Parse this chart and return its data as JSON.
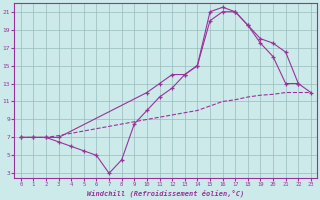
{
  "xlabel": "Windchill (Refroidissement éolien,°C)",
  "xlim": [
    -0.5,
    23.5
  ],
  "ylim": [
    2.5,
    22
  ],
  "yticks": [
    3,
    5,
    7,
    9,
    11,
    13,
    15,
    17,
    19,
    21
  ],
  "xticks": [
    0,
    1,
    2,
    3,
    4,
    5,
    6,
    7,
    8,
    9,
    10,
    11,
    12,
    13,
    14,
    15,
    16,
    17,
    18,
    19,
    20,
    21,
    22,
    23
  ],
  "bg_color": "#cceaea",
  "line_color": "#993399",
  "grid_color": "#99bbbb",
  "line1_x": [
    0,
    1,
    2,
    3,
    4,
    5,
    6,
    7,
    8,
    9,
    10,
    11,
    12,
    13,
    14,
    15,
    16,
    17,
    18,
    19,
    20,
    21,
    22
  ],
  "line1_y": [
    7,
    7,
    7,
    6.5,
    6,
    5.5,
    5,
    3,
    4.5,
    8.5,
    10,
    11.5,
    12.5,
    14,
    15,
    21,
    21.5,
    21,
    19.5,
    17.5,
    16,
    13,
    13
  ],
  "line2_x": [
    0,
    1,
    2,
    3,
    10,
    11,
    12,
    13,
    14,
    15,
    16,
    17,
    18,
    19,
    20,
    21,
    22,
    23
  ],
  "line2_y": [
    7,
    7,
    7,
    7,
    12,
    13,
    14,
    14,
    15,
    20,
    21,
    21,
    19.5,
    18,
    17.5,
    16.5,
    13,
    12
  ],
  "line3_x": [
    0,
    1,
    2,
    3,
    10,
    14,
    15,
    16,
    17,
    18,
    19,
    20,
    21,
    22,
    23
  ],
  "line3_y": [
    7,
    7,
    7,
    7.2,
    9,
    10,
    10.5,
    11,
    11.2,
    11.5,
    11.7,
    11.8,
    12,
    12,
    12
  ]
}
